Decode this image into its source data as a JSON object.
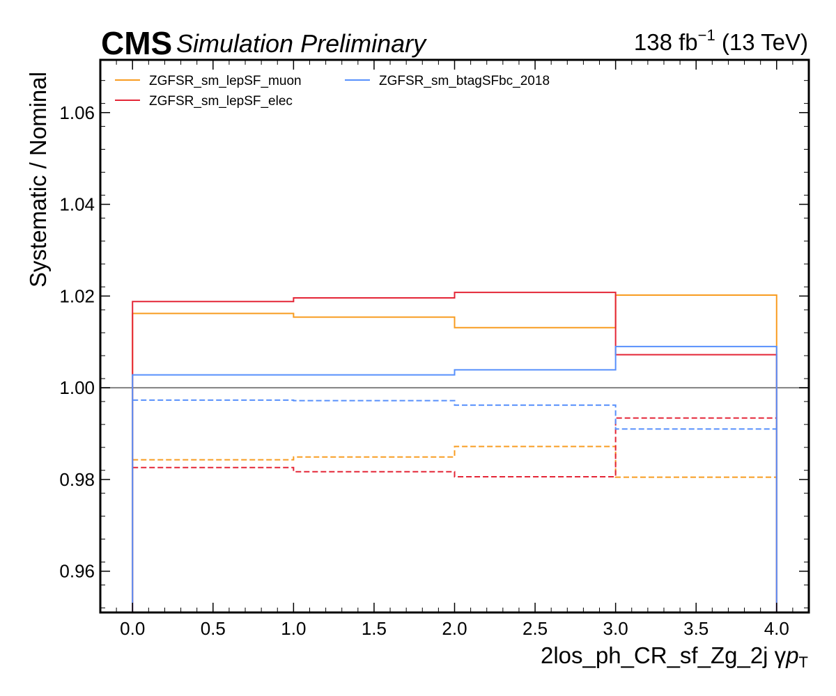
{
  "header": {
    "experiment": "CMS",
    "status": "Simulation Preliminary",
    "lumi_value": "138 fb",
    "lumi_exp": "−1",
    "energy": " (13 TeV)"
  },
  "chart_data": {
    "type": "line",
    "subtype": "step-histogram",
    "xlabel_main": "2los_ph_CR_sf_Zg_2j   γ",
    "xlabel_var": "p",
    "xlabel_sub": "T",
    "ylabel": "Systematic / Nominal",
    "xlim": [
      -0.2,
      4.2
    ],
    "ylim": [
      0.951,
      1.0715
    ],
    "x_ticks": [
      "0.0",
      "0.5",
      "1.0",
      "1.5",
      "2.0",
      "2.5",
      "3.0",
      "3.5",
      "4.0"
    ],
    "y_ticks": [
      "0.96",
      "0.98",
      "1.00",
      "1.02",
      "1.04",
      "1.06"
    ],
    "bin_edges": [
      0,
      1,
      2,
      3,
      4
    ],
    "reference_line": 1.0,
    "legend_position": "top-left",
    "series": [
      {
        "name": "ZGFSR_sm_lepSF_muon",
        "color": "#f89c20",
        "up": [
          1.0162,
          1.0154,
          1.0131,
          1.0202
        ],
        "down": [
          0.9843,
          0.9849,
          0.9872,
          0.9805
        ]
      },
      {
        "name": "ZGFSR_sm_lepSF_elec",
        "color": "#e42536",
        "up": [
          1.0188,
          1.0196,
          1.0208,
          1.0072
        ],
        "down": [
          0.9826,
          0.9817,
          0.9806,
          0.9934
        ]
      },
      {
        "name": "ZGFSR_sm_btagSFbc_2018",
        "color": "#5790fc",
        "up": [
          1.0028,
          1.0028,
          1.0039,
          1.009
        ],
        "down": [
          0.9973,
          0.9972,
          0.9962,
          0.991
        ]
      }
    ]
  }
}
